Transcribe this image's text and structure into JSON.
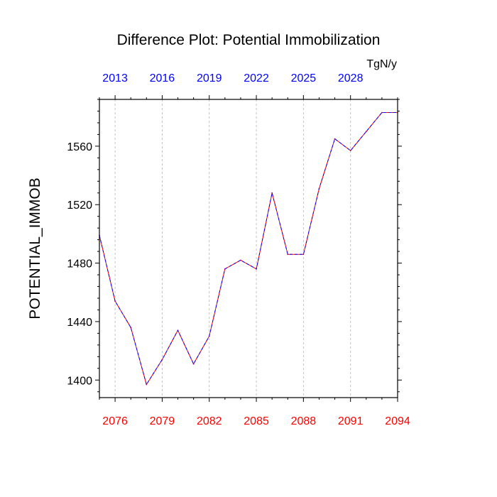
{
  "chart_data": {
    "type": "line",
    "title": "Difference Plot: Potential Immobilization",
    "ylabel": "POTENTIAL_IMMOB",
    "units": "TgN/y",
    "xlim": [
      2075,
      2094
    ],
    "ylim": [
      1388,
      1592
    ],
    "x_ticks": [
      2076,
      2079,
      2082,
      2085,
      2088,
      2091,
      2094
    ],
    "x_tick_color": "#ff0000",
    "top_axis": {
      "offset_years": -63,
      "ticks": [
        2013,
        2016,
        2019,
        2022,
        2025,
        2028
      ],
      "color": "#0000ff"
    },
    "y_ticks": [
      1400,
      1440,
      1480,
      1520,
      1560
    ],
    "y_minor_step": 8,
    "x_grid_lines": [
      2076,
      2079,
      2082,
      2085,
      2088,
      2091
    ],
    "series": [
      {
        "name": "difference",
        "line_style": "dashed",
        "colors": [
          "#ff0000",
          "#0000ff"
        ],
        "x": [
          2075,
          2076,
          2077,
          2078,
          2079,
          2080,
          2081,
          2082,
          2083,
          2084,
          2085,
          2086,
          2087,
          2088,
          2089,
          2090,
          2091,
          2092,
          2093,
          2094
        ],
        "values": [
          1499,
          1454,
          1436,
          1397,
          1414,
          1434,
          1411,
          1430,
          1476,
          1482,
          1476,
          1528,
          1486,
          1486,
          1531,
          1565,
          1557,
          1570,
          1583,
          1583
        ]
      }
    ]
  }
}
